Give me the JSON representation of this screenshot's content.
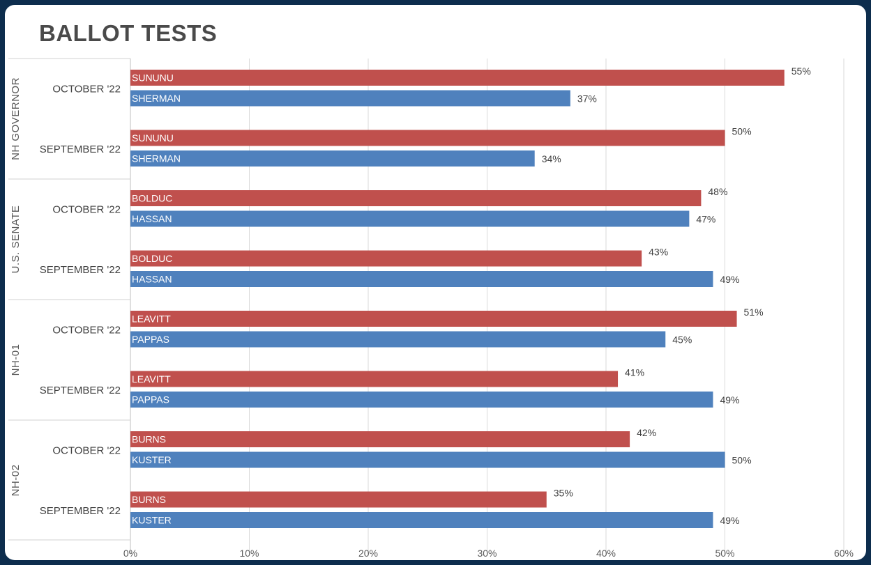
{
  "chart_data": {
    "type": "bar",
    "orientation": "horizontal",
    "title": "BALLOT TESTS",
    "xlim": [
      0,
      60
    ],
    "x_ticks": [
      "0%",
      "10%",
      "20%",
      "30%",
      "40%",
      "50%",
      "60%"
    ],
    "grid": true,
    "colors": {
      "republican": "#c0504d",
      "democrat": "#4f81bd"
    },
    "groups": [
      {
        "name": "NH GOVERNOR",
        "periods": [
          {
            "label": "OCTOBER '22",
            "bars": [
              {
                "candidate": "SUNUNU",
                "value": 55,
                "label": "55%",
                "party": "republican"
              },
              {
                "candidate": "SHERMAN",
                "value": 37,
                "label": "37%",
                "party": "democrat"
              }
            ]
          },
          {
            "label": "SEPTEMBER '22",
            "bars": [
              {
                "candidate": "SUNUNU",
                "value": 50,
                "label": "50%",
                "party": "republican"
              },
              {
                "candidate": "SHERMAN",
                "value": 34,
                "label": "34%",
                "party": "democrat"
              }
            ]
          }
        ]
      },
      {
        "name": "U.S. SENATE",
        "periods": [
          {
            "label": "OCTOBER '22",
            "bars": [
              {
                "candidate": "BOLDUC",
                "value": 48,
                "label": "48%",
                "party": "republican"
              },
              {
                "candidate": "HASSAN",
                "value": 47,
                "label": "47%",
                "party": "democrat"
              }
            ]
          },
          {
            "label": "SEPTEMBER '22",
            "bars": [
              {
                "candidate": "BOLDUC",
                "value": 43,
                "label": "43%",
                "party": "republican"
              },
              {
                "candidate": "HASSAN",
                "value": 49,
                "label": "49%",
                "party": "democrat"
              }
            ]
          }
        ]
      },
      {
        "name": "NH-01",
        "periods": [
          {
            "label": "OCTOBER '22",
            "bars": [
              {
                "candidate": "LEAVITT",
                "value": 51,
                "label": "51%",
                "party": "republican"
              },
              {
                "candidate": "PAPPAS",
                "value": 45,
                "label": "45%",
                "party": "democrat"
              }
            ]
          },
          {
            "label": "SEPTEMBER '22",
            "bars": [
              {
                "candidate": "LEAVITT",
                "value": 41,
                "label": "41%",
                "party": "republican"
              },
              {
                "candidate": "PAPPAS",
                "value": 49,
                "label": "49%",
                "party": "democrat"
              }
            ]
          }
        ]
      },
      {
        "name": "NH-02",
        "periods": [
          {
            "label": "OCTOBER '22",
            "bars": [
              {
                "candidate": "BURNS",
                "value": 42,
                "label": "42%",
                "party": "republican"
              },
              {
                "candidate": "KUSTER",
                "value": 50,
                "label": "50%",
                "party": "democrat"
              }
            ]
          },
          {
            "label": "SEPTEMBER '22",
            "bars": [
              {
                "candidate": "BURNS",
                "value": 35,
                "label": "35%",
                "party": "republican"
              },
              {
                "candidate": "KUSTER",
                "value": 49,
                "label": "49%",
                "party": "democrat"
              }
            ]
          }
        ]
      }
    ]
  }
}
